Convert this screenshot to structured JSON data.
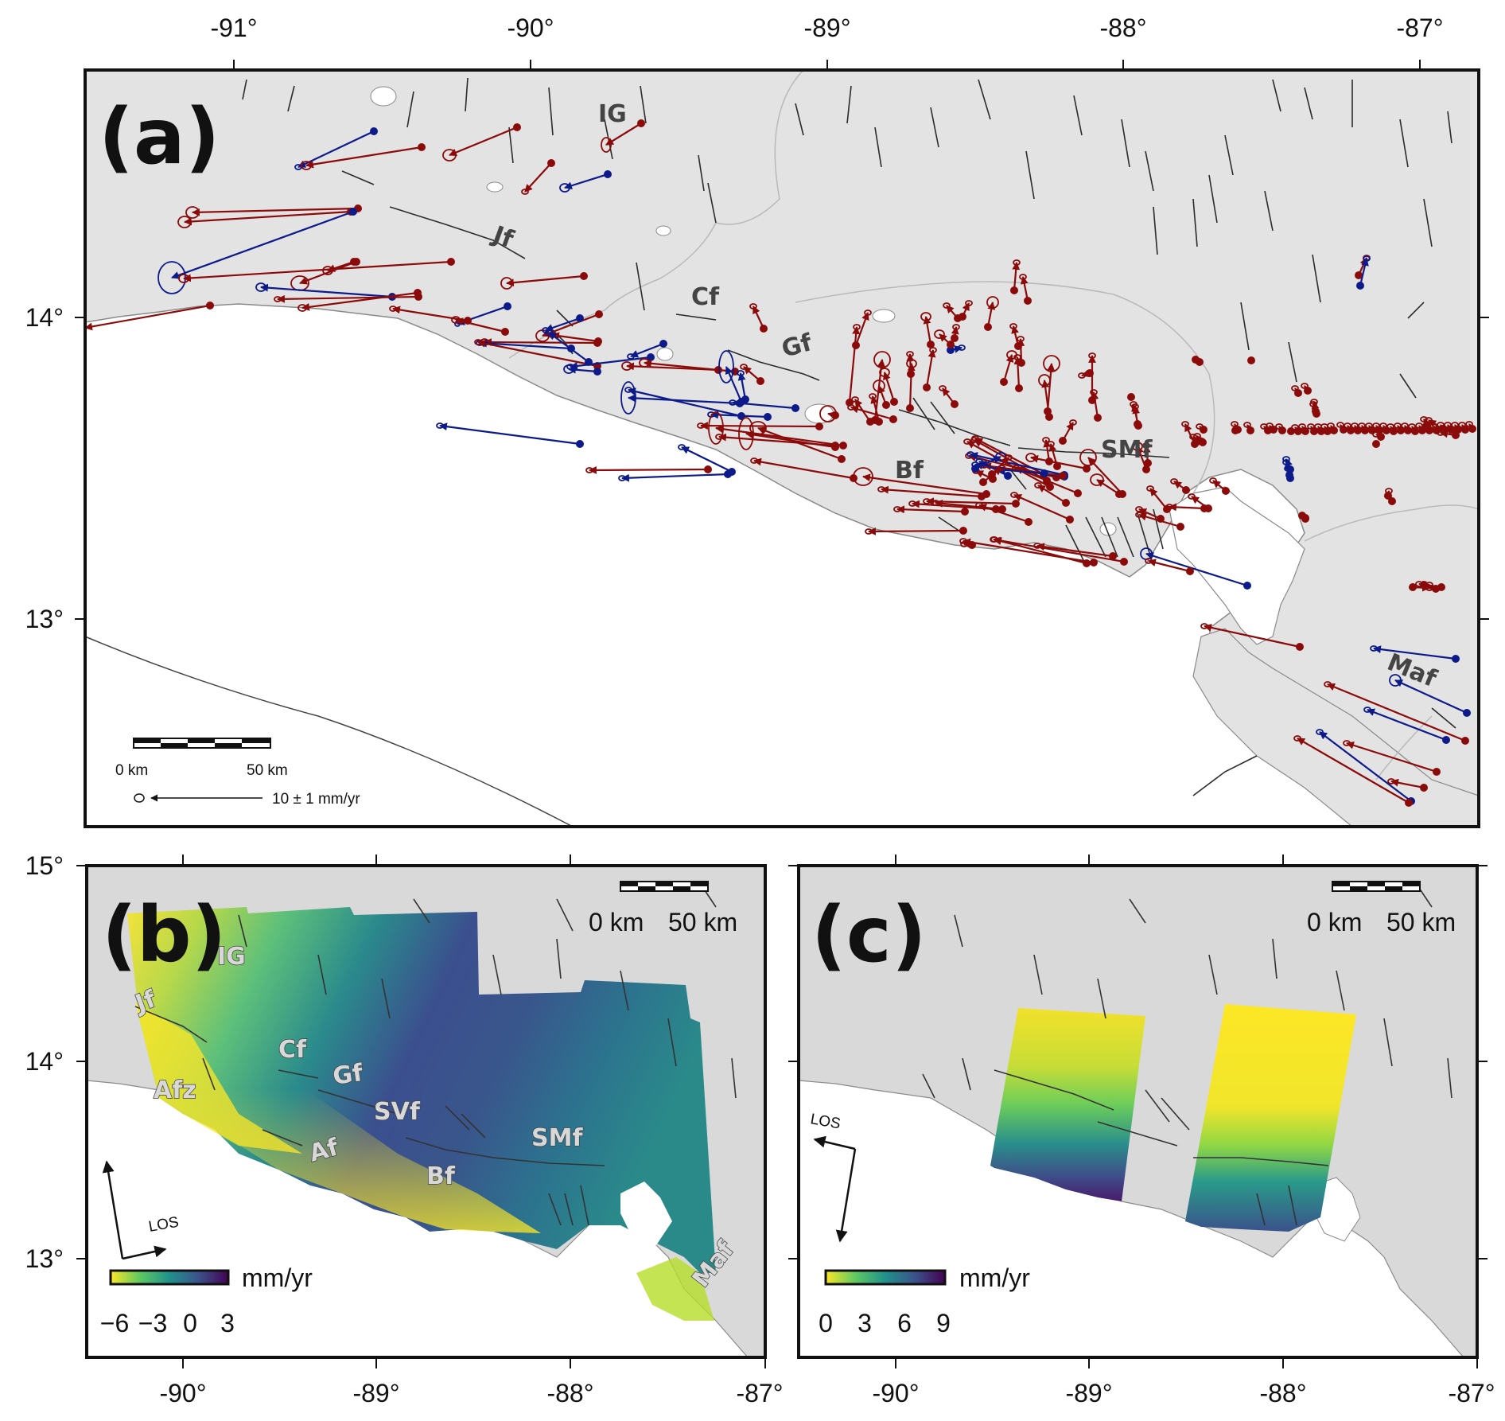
{
  "panel_a": {
    "label": "(a)",
    "top_ticks": [
      "-91°",
      "-90°",
      "-89°",
      "-88°",
      "-87°"
    ],
    "left_ticks": [
      "14°",
      "13°"
    ],
    "fault_labels": [
      "IG",
      "Jf",
      "Cf",
      "Gf",
      "SMf",
      "Bf",
      "Maf"
    ],
    "scale_bar": {
      "left": "0 km",
      "right": "50 km"
    },
    "velocity_legend": "10 ± 1 mm/yr",
    "colors": {
      "red_vectors": "#8b0a0a",
      "blue_vectors": "#0c1a8a",
      "land": "#e3e3e3",
      "fault": "#2b2b2b"
    }
  },
  "panel_b": {
    "label": "(b)",
    "left_ticks": [
      "15°",
      "14°",
      "13°"
    ],
    "bottom_ticks": [
      "-90°",
      "-89°",
      "-88°",
      "-87°"
    ],
    "fault_labels": [
      "IG",
      "Jf",
      "Cf",
      "Gf",
      "Afz",
      "SVf",
      "SMf",
      "Af",
      "Bf",
      "Maf"
    ],
    "scale_bar": {
      "left": "0 km",
      "right": "50 km"
    },
    "los_label": "LOS",
    "colorbar": {
      "unit": "mm/yr",
      "ticks": [
        "−6",
        "−3",
        "0",
        "3"
      ],
      "range": [
        -6,
        3
      ]
    }
  },
  "panel_c": {
    "label": "(c)",
    "bottom_ticks": [
      "-90°",
      "-89°",
      "-88°",
      "-87°"
    ],
    "scale_bar": {
      "left": "0 km",
      "right": "50 km"
    },
    "los_label": "LOS",
    "colorbar": {
      "unit": "mm/yr",
      "ticks": [
        "0",
        "3",
        "6",
        "9"
      ],
      "range": [
        0,
        9
      ]
    }
  }
}
